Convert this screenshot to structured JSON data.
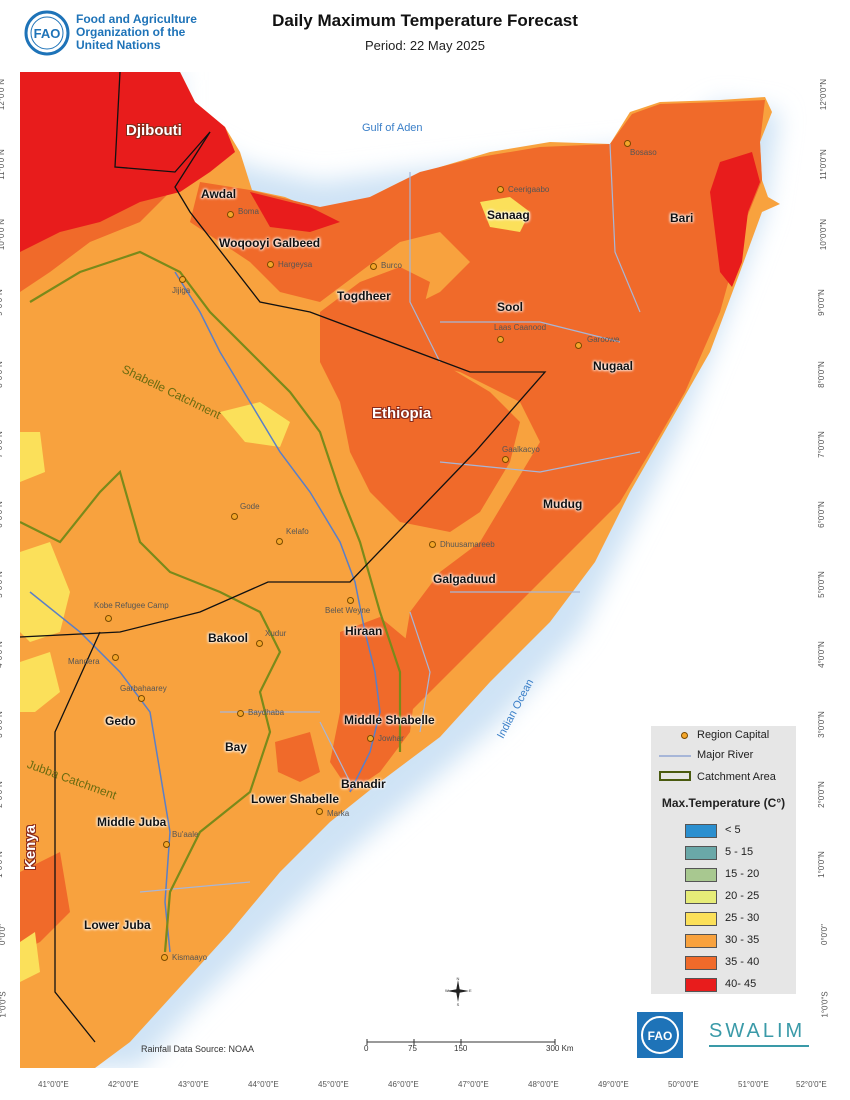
{
  "header": {
    "org_line1": "Food and Agriculture",
    "org_line2": "Organization of the",
    "org_line3": "United Nations",
    "title": "Daily Maximum Temperature Forecast",
    "period": "Period: 22 May 2025"
  },
  "axes": {
    "lon_ticks": [
      "41°0'0\"E",
      "42°0'0\"E",
      "43°0'0\"E",
      "44°0'0\"E",
      "45°0'0\"E",
      "46°0'0\"E",
      "47°0'0\"E",
      "48°0'0\"E",
      "49°0'0\"E",
      "50°0'0\"E",
      "51°0'0\"E",
      "52°0'0\"E"
    ],
    "lat_ticks": [
      "12°0'0\"N",
      "11°0'0\"N",
      "10°0'0\"N",
      "9°0'0\"N",
      "8°0'0\"N",
      "7°0'0\"N",
      "6°0'0\"N",
      "5°0'0\"N",
      "4°0'0\"N",
      "3°0'0\"N",
      "2°0'0\"N",
      "1°0'0\"N",
      "0°0'0\"",
      "1°0'0\"S"
    ]
  },
  "countries": {
    "djibouti": "Djibouti",
    "ethiopia": "Ethiopia",
    "kenya": "Kenya"
  },
  "water_bodies": {
    "gulf": "Gulf of Aden",
    "ocean": "Indian Ocean"
  },
  "catchments": {
    "shabelle": "Shabelle Catchment",
    "jubba": "Jubba Catchment"
  },
  "regions": {
    "awdal": "Awdal",
    "woqooyi": "Woqooyi Galbeed",
    "togdheer": "Togdheer",
    "sanaag": "Sanaag",
    "bari": "Bari",
    "sool": "Sool",
    "nugaal": "Nugaal",
    "mudug": "Mudug",
    "galgaduud": "Galgaduud",
    "hiraan": "Hiraan",
    "bakool": "Bakool",
    "gedo": "Gedo",
    "bay": "Bay",
    "middle_shabelle": "Middle Shabelle",
    "banadir": "Banadir",
    "lower_shabelle": "Lower Shabelle",
    "middle_juba": "Middle Juba",
    "lower_juba": "Lower Juba"
  },
  "cities": {
    "bosaso": "Bosaso",
    "ceerigaabo": "Ceerigaabo",
    "boroma": "Boma",
    "hargeysa": "Hargeysa",
    "burco": "Burco",
    "jijiga": "Jijiga",
    "laas_caanood": "Laas Caanood",
    "garoowe": "Garoowe",
    "gaalkacyo": "Gaalkacyo",
    "gode": "Gode",
    "kelafo": "Kelafo",
    "dhuusamareeb": "Dhuusamareeb",
    "belet_weyne": "Belet Weyne",
    "kobe": "Kobe Refugee Camp",
    "xudur": "Xudur",
    "mandera": "Mandera",
    "garbahaarey": "Garbahaarey",
    "baydhaba": "Baydhaba",
    "jowhar": "Jowhar",
    "marka": "Marka",
    "buaale": "Bu'aale",
    "kismaayo": "Kismaayo"
  },
  "legend": {
    "region_capital": "Region Capital",
    "major_river": "Major River",
    "catchment_area": "Catchment Area",
    "title": "Max.Temperature (C°)",
    "classes": [
      {
        "label": "< 5",
        "color": "#2b8fcf"
      },
      {
        "label": "5 - 15",
        "color": "#6aa8a8"
      },
      {
        "label": "15 - 20",
        "color": "#a8c890"
      },
      {
        "label": "20 - 25",
        "color": "#e6ec78"
      },
      {
        "label": "25 - 30",
        "color": "#fbe05a"
      },
      {
        "label": "30 - 35",
        "color": "#f8a23e"
      },
      {
        "label": "35 - 40",
        "color": "#f06a2a"
      },
      {
        "label": "40- 45",
        "color": "#e81c1c"
      }
    ]
  },
  "footer": {
    "source": "Rainfall Data Source: NOAA",
    "scale": [
      "0",
      "75",
      "150",
      "300 Km"
    ],
    "swalim": "SWALIM"
  },
  "colors": {
    "sea": "#ffffff",
    "coast_glow": "#cfe3f5",
    "border": "#111111",
    "river": "#5a7fc8",
    "catchment": "#7a8a1a",
    "region_line": "#a7b6d8"
  }
}
